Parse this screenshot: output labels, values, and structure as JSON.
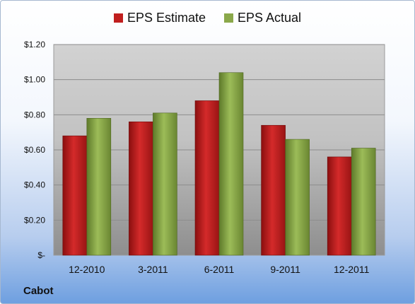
{
  "chart_data": {
    "type": "bar",
    "categories": [
      "12-2010",
      "3-2011",
      "6-2011",
      "9-2011",
      "12-2011"
    ],
    "series": [
      {
        "name": "EPS Estimate",
        "values": [
          0.68,
          0.76,
          0.88,
          0.74,
          0.56
        ],
        "color": "#c01e1e"
      },
      {
        "name": "EPS Actual",
        "values": [
          0.78,
          0.81,
          1.04,
          0.66,
          0.61
        ],
        "color": "#8aa84a"
      }
    ],
    "y_ticks": [
      {
        "value": 0,
        "label": "$-"
      },
      {
        "value": 0.2,
        "label": "$0.20"
      },
      {
        "value": 0.4,
        "label": "$0.40"
      },
      {
        "value": 0.6,
        "label": "$0.60"
      },
      {
        "value": 0.8,
        "label": "$0.80"
      },
      {
        "value": 1.0,
        "label": "$1.00"
      },
      {
        "value": 1.2,
        "label": "$1.20"
      }
    ],
    "ylim": [
      0,
      1.2
    ],
    "grid": true,
    "legend_position": "top-center"
  },
  "company_label": "Cabot"
}
